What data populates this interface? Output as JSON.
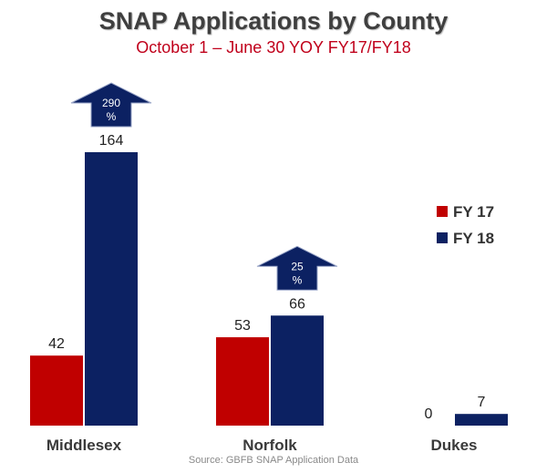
{
  "chart_data": {
    "type": "bar",
    "title": "SNAP Applications  by County",
    "subtitle": "October 1 – June 30 YOY FY17/FY18",
    "source": "Source: GBFB SNAP Application Data",
    "categories": [
      "Middlesex",
      "Norfolk",
      "Dukes"
    ],
    "series": [
      {
        "name": "FY 17",
        "values": [
          42,
          53,
          0
        ],
        "color": "#c00000"
      },
      {
        "name": "FY 18",
        "values": [
          164,
          66,
          7
        ],
        "color": "#0c2162"
      }
    ],
    "value_labels": {
      "FY 17": [
        "42",
        "53",
        "0"
      ],
      "FY 18": [
        "164",
        "66",
        "7"
      ]
    },
    "growth_annotations": [
      {
        "category": "Middlesex",
        "line1": "290",
        "line2": "%"
      },
      {
        "category": "Norfolk",
        "line1": "25",
        "line2": "%"
      }
    ],
    "ylim": [
      0,
      164
    ],
    "grid": false,
    "legend_position": "right"
  }
}
